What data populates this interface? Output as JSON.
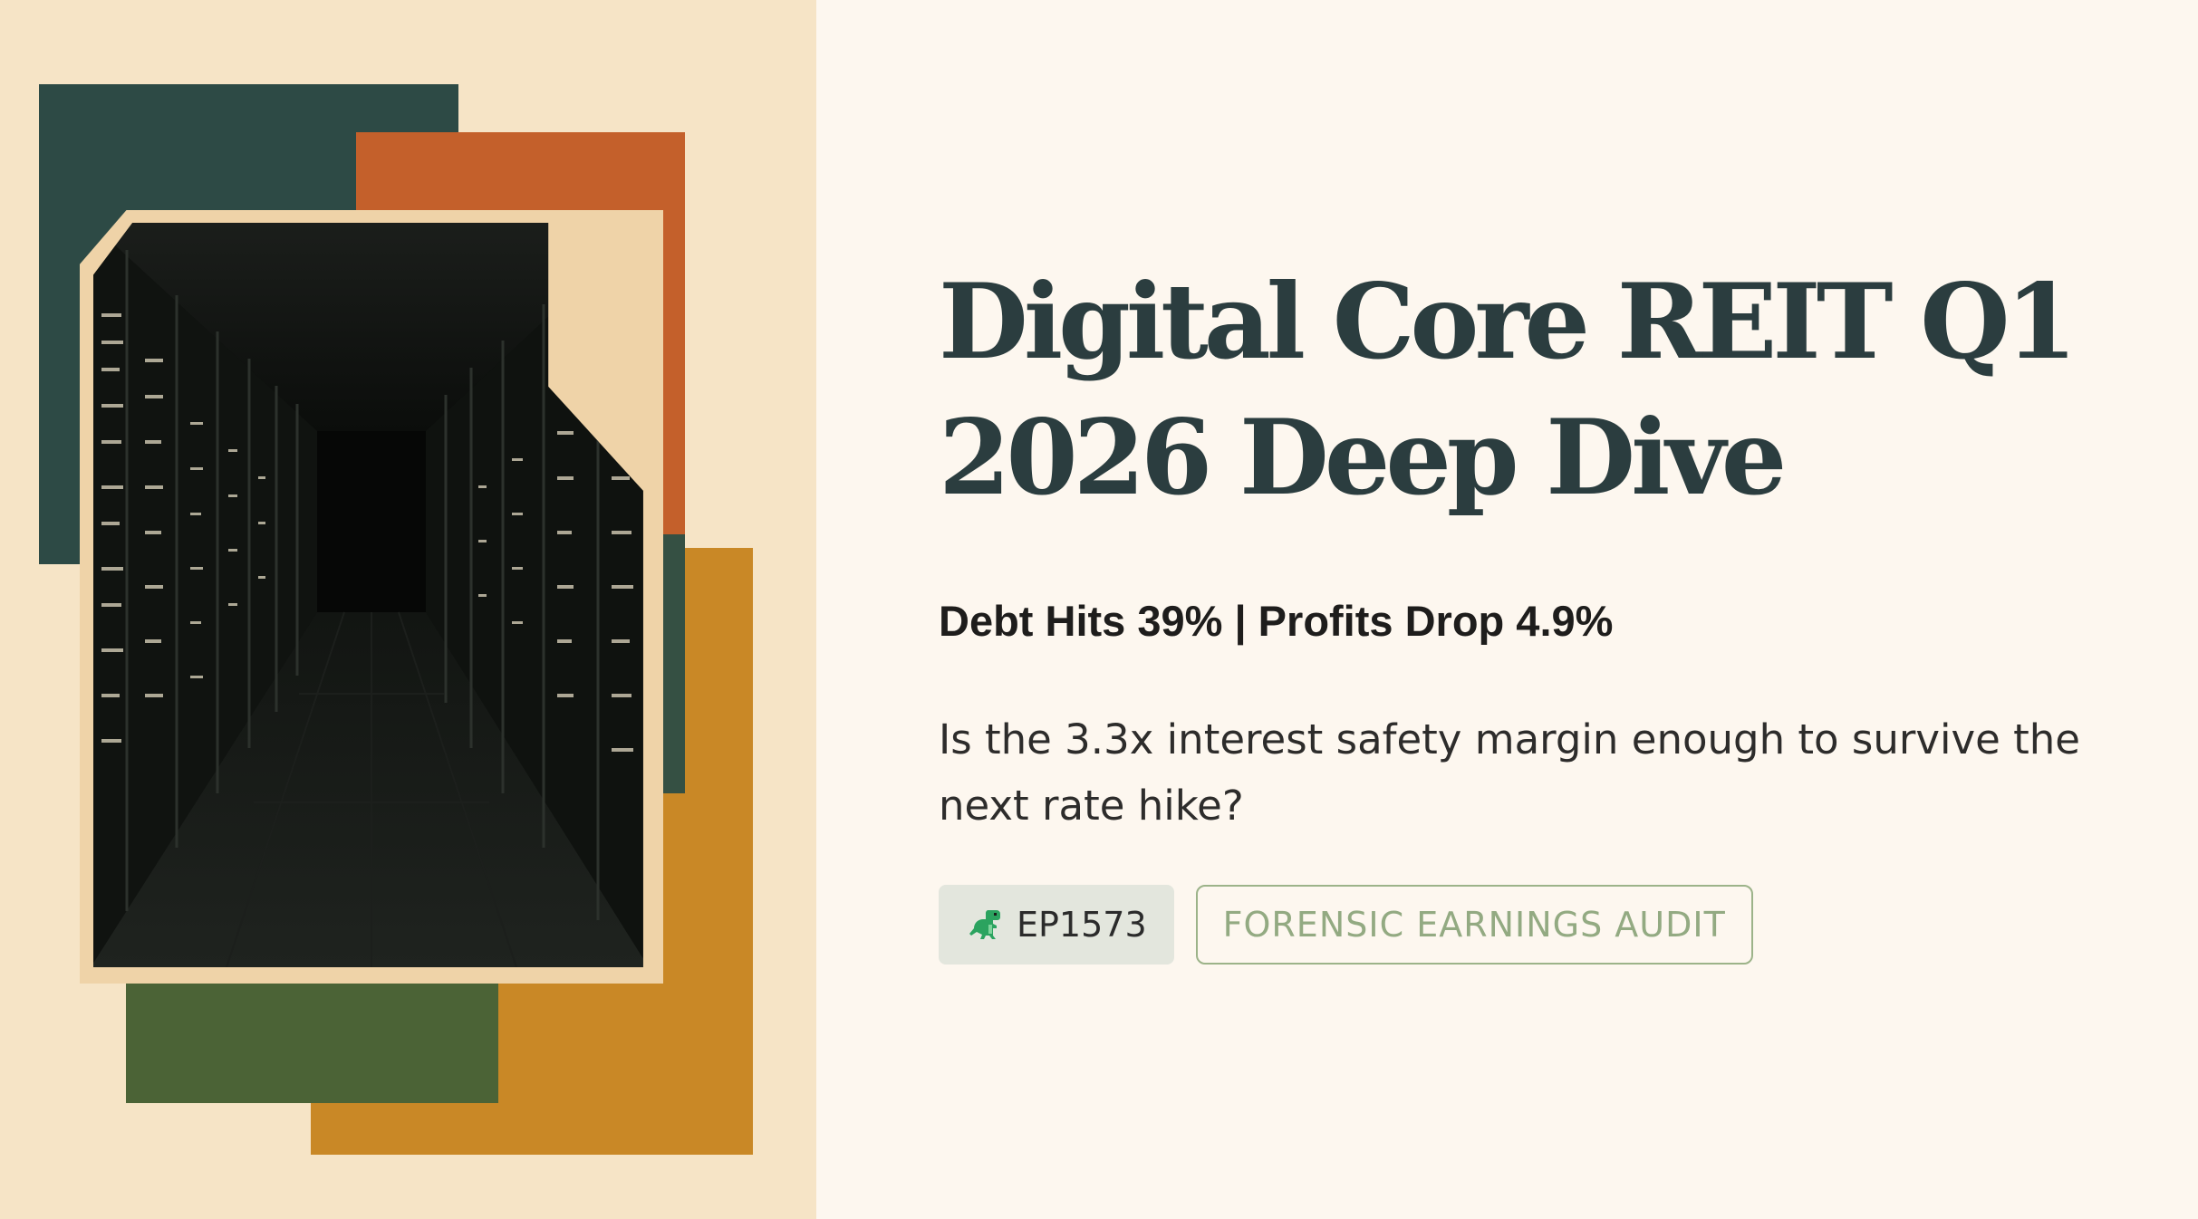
{
  "title": "Digital Core REIT Q1 2026 Deep Dive",
  "subtitle": "Debt Hits 39% | Profits Drop 4.9%",
  "description": "Is the 3.3x interest safety margin enough to survive the next rate hike?",
  "tags": {
    "episode": "EP1573",
    "category": "FORENSIC EARNINGS AUDIT"
  },
  "icons": {
    "episode_icon": "dinosaur-icon"
  },
  "colors": {
    "left_background": "#f6e4c6",
    "right_background": "#fdf7ef",
    "title": "#2b3d3f",
    "teal_block": "#2d4a45",
    "orange_block": "#c4602b",
    "amber_block": "#c98826",
    "green_block": "#4b6336",
    "tag_outline": "#9cb389"
  }
}
